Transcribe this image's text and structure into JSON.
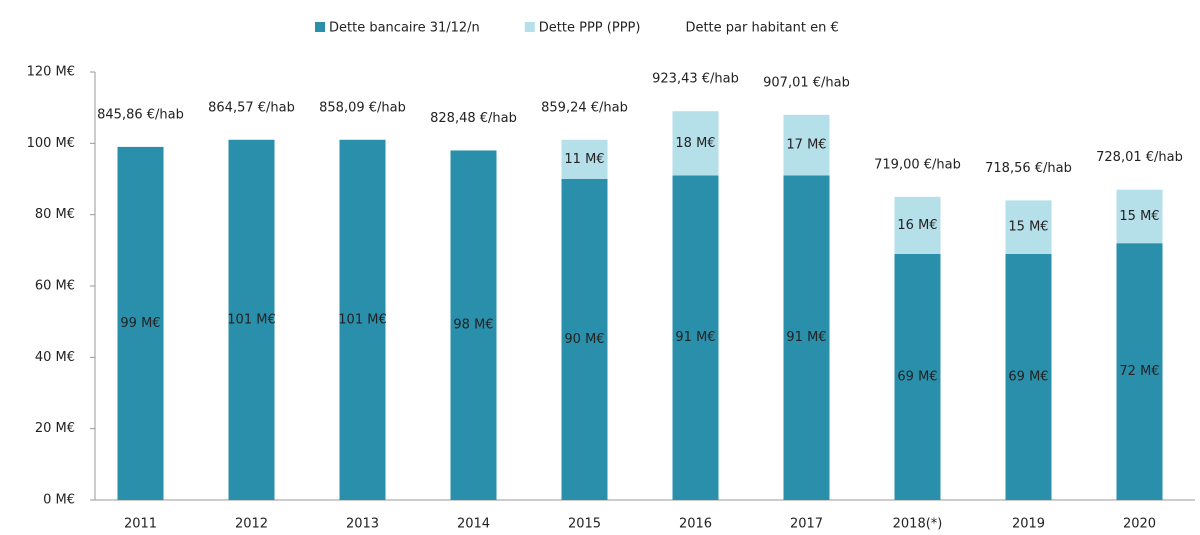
{
  "chart_data": {
    "type": "bar",
    "stacked": true,
    "categories": [
      "2011",
      "2012",
      "2013",
      "2014",
      "2015",
      "2016",
      "2017",
      "2018(*)",
      "2019",
      "2020"
    ],
    "series": [
      {
        "name": "Dette bancaire 31/12/n",
        "color": "#2a8fab",
        "values": [
          99,
          101,
          101,
          98,
          90,
          91,
          91,
          69,
          69,
          72
        ],
        "value_labels": [
          "99 M€",
          "101 M€",
          "101 M€",
          "98 M€",
          "90 M€",
          "91 M€",
          "91 M€",
          "69 M€",
          "69 M€",
          "72 M€"
        ]
      },
      {
        "name": "Dette PPP (PPP)",
        "color": "#b5dfe9",
        "values": [
          null,
          null,
          null,
          null,
          11,
          18,
          17,
          16,
          15,
          15
        ],
        "value_labels": [
          null,
          null,
          null,
          null,
          "11 M€",
          "18 M€",
          "17 M€",
          "16 M€",
          "15 M€",
          "15 M€"
        ]
      },
      {
        "name": "Dette par habitant en €",
        "type": "label",
        "values": [
          845.86,
          864.57,
          858.09,
          828.48,
          859.24,
          923.43,
          907.01,
          719.0,
          718.56,
          728.01
        ],
        "value_labels": [
          "845,86 €/hab",
          "864,57 €/hab",
          "858,09 €/hab",
          "828,48 €/hab",
          "859,24 €/hab",
          "923,43 €/hab",
          "907,01 €/hab",
          "719,00 €/hab",
          "718,56 €/hab",
          "728,01 €/hab"
        ]
      }
    ],
    "ylim": [
      0,
      120
    ],
    "yticks": [
      {
        "value": 0,
        "label": "0 M€"
      },
      {
        "value": 20,
        "label": "20 M€"
      },
      {
        "value": 40,
        "label": "40 M€"
      },
      {
        "value": 60,
        "label": "60 M€"
      },
      {
        "value": 80,
        "label": "80 M€"
      },
      {
        "value": 100,
        "label": "100 M€"
      },
      {
        "value": 120,
        "label": "120 M€"
      }
    ],
    "legend": "top"
  }
}
